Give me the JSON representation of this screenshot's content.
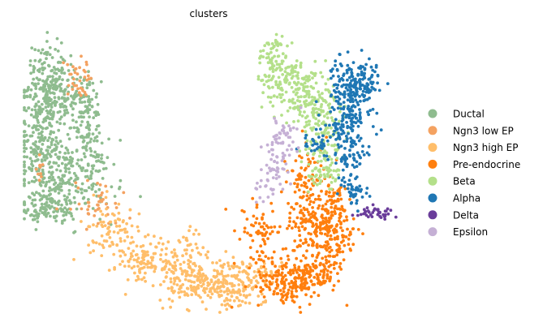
{
  "chart_data": {
    "type": "scatter",
    "title": "clusters",
    "xlabel": "",
    "ylabel": "",
    "grid": false,
    "axes_visible": false,
    "legend_position": "right",
    "series": [
      {
        "name": "Ductal",
        "color": "#8fbc8f",
        "blobs": [
          [
            62,
            92,
            12,
            22,
            120
          ],
          [
            60,
            128,
            18,
            20,
            140
          ],
          [
            50,
            170,
            12,
            28,
            120
          ],
          [
            110,
            150,
            10,
            32,
            90
          ],
          [
            72,
            220,
            32,
            28,
            320
          ],
          [
            96,
            122,
            10,
            16,
            60
          ],
          [
            60,
            258,
            20,
            8,
            60
          ]
        ]
      },
      {
        "name": "Ngn3 low EP",
        "color": "#f4a261",
        "blobs": [
          [
            96,
            85,
            8,
            6,
            14
          ],
          [
            97,
            105,
            7,
            9,
            22
          ],
          [
            118,
            252,
            16,
            14,
            40
          ],
          [
            48,
            210,
            5,
            8,
            10
          ]
        ]
      },
      {
        "name": "Ngn3 high EP",
        "color": "#ffbe6a",
        "blobs": [
          [
            140,
            280,
            18,
            14,
            70
          ],
          [
            185,
            318,
            25,
            12,
            140
          ],
          [
            245,
            345,
            30,
            14,
            220
          ],
          [
            285,
            358,
            20,
            12,
            90
          ],
          [
            308,
            332,
            14,
            8,
            45
          ],
          [
            233,
            292,
            7,
            10,
            16
          ]
        ]
      },
      {
        "name": "Pre-endocrine",
        "color": "#ff7f0e",
        "blobs": [
          [
            318,
            288,
            12,
            20,
            60
          ],
          [
            360,
            345,
            22,
            16,
            220
          ],
          [
            380,
            272,
            18,
            20,
            110
          ],
          [
            402,
            300,
            16,
            28,
            200
          ],
          [
            375,
            215,
            12,
            18,
            60
          ],
          [
            410,
            250,
            12,
            14,
            50
          ]
        ]
      },
      {
        "name": "Beta",
        "color": "#b4e08a",
        "blobs": [
          [
            335,
            68,
            8,
            14,
            60
          ],
          [
            358,
            102,
            18,
            16,
            140
          ],
          [
            385,
            132,
            16,
            14,
            120
          ],
          [
            398,
            175,
            12,
            20,
            90
          ],
          [
            400,
            210,
            10,
            12,
            50
          ]
        ]
      },
      {
        "name": "Alpha",
        "color": "#1f77b4",
        "blobs": [
          [
            440,
            100,
            16,
            14,
            170
          ],
          [
            428,
            148,
            14,
            20,
            130
          ],
          [
            432,
            200,
            10,
            20,
            80
          ],
          [
            390,
            178,
            10,
            8,
            30
          ],
          [
            436,
            238,
            6,
            8,
            20
          ]
        ]
      },
      {
        "name": "Delta",
        "color": "#6a3d9a",
        "blobs": [
          [
            463,
            262,
            14,
            4,
            40
          ]
        ]
      },
      {
        "name": "Epsilon",
        "color": "#c5b0d5",
        "blobs": [
          [
            345,
            175,
            10,
            14,
            35
          ],
          [
            338,
            205,
            10,
            12,
            35
          ],
          [
            328,
            234,
            7,
            8,
            18
          ],
          [
            356,
            162,
            8,
            6,
            15
          ]
        ]
      }
    ]
  }
}
